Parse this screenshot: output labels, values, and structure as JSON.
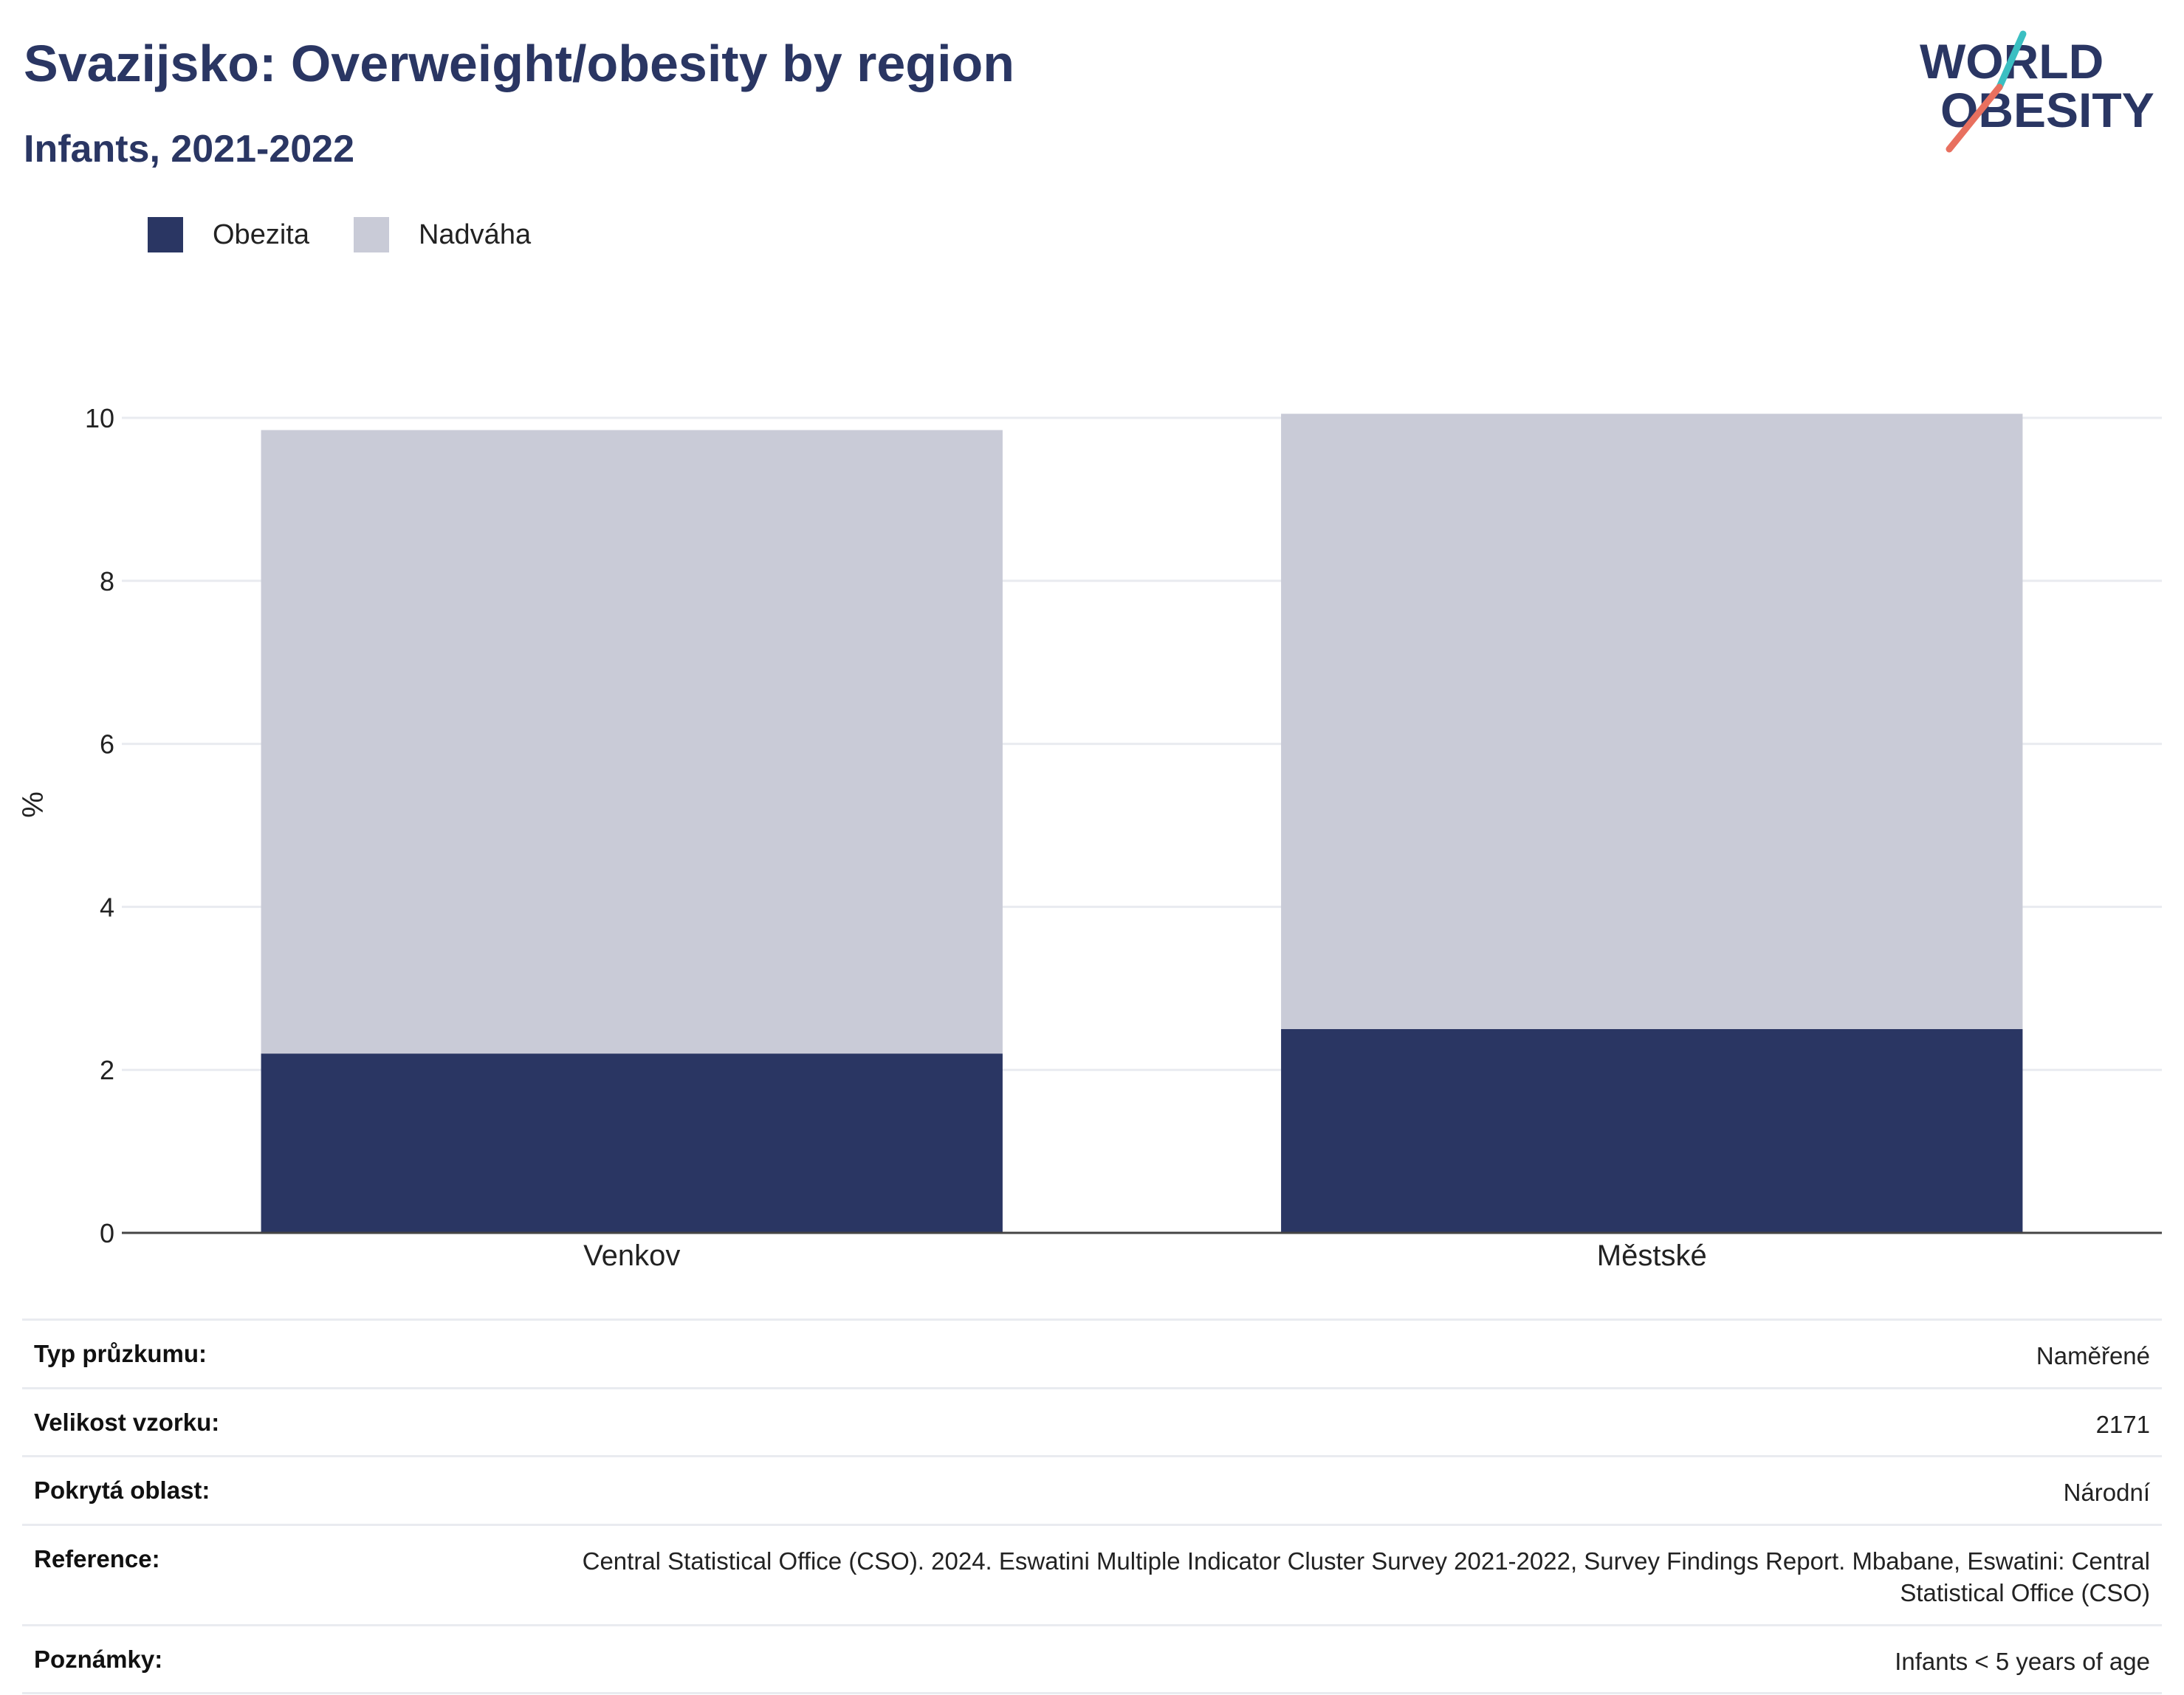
{
  "header": {
    "title": "Svazijsko: Overweight/obesity by region",
    "subtitle": "Infants, 2021-2022"
  },
  "logo": {
    "line1": "WORLD",
    "line2": "OBESITY",
    "accent_colors": [
      "#3bbfc2",
      "#e8705f"
    ]
  },
  "colors": {
    "obesity": "#2a3663",
    "overweight": "#c9cbd7",
    "title": "#2a3663"
  },
  "chart_data": {
    "type": "bar",
    "stacked": true,
    "categories": [
      "Venkov",
      "Městské"
    ],
    "series": [
      {
        "name": "Obezita",
        "values": [
          2.2,
          2.5
        ]
      },
      {
        "name": "Nadváha",
        "values": [
          7.65,
          7.55
        ]
      }
    ],
    "ylabel": "%",
    "xlabel": "",
    "ylim": [
      0,
      10
    ],
    "yticks": [
      0,
      2,
      4,
      6,
      8,
      10
    ],
    "grid": true,
    "legend_position": "top-left"
  },
  "info_table": [
    {
      "label": "Typ průzkumu:",
      "value": "Naměřené"
    },
    {
      "label": "Velikost vzorku:",
      "value": "2171"
    },
    {
      "label": "Pokrytá oblast:",
      "value": "Národní"
    },
    {
      "label": "Reference:",
      "value": "Central Statistical Office (CSO). 2024. Eswatini Multiple Indicator Cluster Survey 2021-2022, Survey Findings Report. Mbabane, Eswatini: Central Statistical Office (CSO)"
    },
    {
      "label": "Poznámky:",
      "value": "Infants < 5 years of age"
    }
  ]
}
